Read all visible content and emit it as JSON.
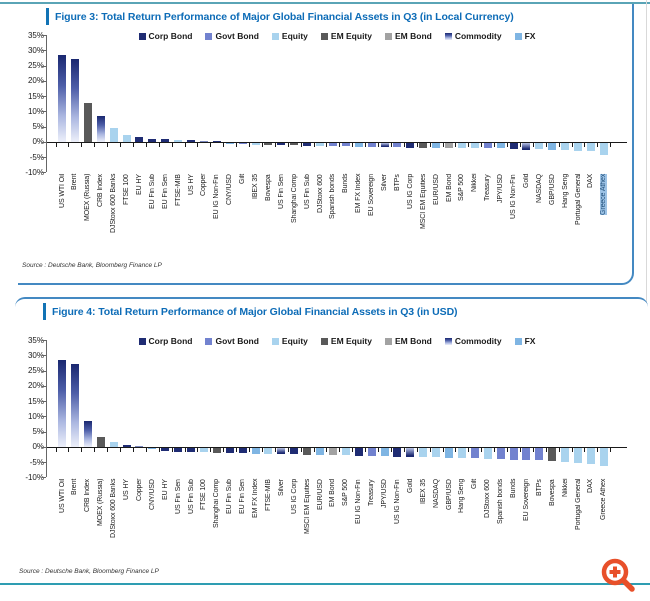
{
  "page": {
    "figure3_title": "Figure 3: Total Return Performance of Major Global Financial Assets in Q3 (in Local Currency)",
    "figure4_title": "Figure 4: Total Return Performance of Major Global Financial Assets in Q3 (in USD)"
  },
  "colors": {
    "corp_bond": "#1F2C73",
    "govt_bond": "#7282CF",
    "equity": "#A9D3EE",
    "em_equity": "#595959",
    "em_bond": "#A2A2A2",
    "commodity": "#1A2870",
    "commodity_fade": "#EDF0FA",
    "fx": "#7FB5E3",
    "title_blue": "#0D6CB7",
    "box_border": "#4489C2",
    "teal_line": "#2E9DB2",
    "highlight_bg": "#9DC3E6",
    "highlight_text": "#1F4E79",
    "zoom_icon_orange": "#E8502A"
  },
  "legend": [
    {
      "key": "corp_bond",
      "label": "Corp Bond"
    },
    {
      "key": "govt_bond",
      "label": "Govt Bond"
    },
    {
      "key": "equity",
      "label": "Equity"
    },
    {
      "key": "em_equity",
      "label": "EM Equity"
    },
    {
      "key": "em_bond",
      "label": "EM Bond"
    },
    {
      "key": "commodity",
      "label": "Commodity"
    },
    {
      "key": "fx",
      "label": "FX"
    }
  ],
  "chart_data": [
    {
      "type": "bar",
      "title": "Figure 3: Total Return Performance of Major Global Financial Assets in Q3 (in Local Currency)",
      "source": "Source : Deutsche Bank, Bloomberg Finance LP",
      "unit": "%",
      "ylim": [
        -10,
        35
      ],
      "yticks": [
        "35%",
        "30%",
        "25%",
        "20%",
        "15%",
        "10%",
        "5%",
        "0%",
        "-5%",
        "-10%"
      ],
      "grid": false,
      "legend_position": "top",
      "highlighted_label": "Greece Athex",
      "bars": [
        {
          "label": "US WTI Oil",
          "value": 28.5,
          "category": "commodity"
        },
        {
          "label": "Brent",
          "value": 27.3,
          "category": "commodity"
        },
        {
          "label": "MOEX (Russia)",
          "value": 12.8,
          "category": "em_equity"
        },
        {
          "label": "CRB Index",
          "value": 8.6,
          "category": "commodity"
        },
        {
          "label": "DJStoxx 600 Banks",
          "value": 4.5,
          "category": "equity"
        },
        {
          "label": "FTSE 100",
          "value": 2.1,
          "category": "equity"
        },
        {
          "label": "EU HY",
          "value": 1.6,
          "category": "corp_bond"
        },
        {
          "label": "EU Fin Sub",
          "value": 1.0,
          "category": "corp_bond"
        },
        {
          "label": "EU Fin Sen",
          "value": 0.9,
          "category": "corp_bond"
        },
        {
          "label": "FTSE-MIB",
          "value": 0.6,
          "category": "equity"
        },
        {
          "label": "US HY",
          "value": 0.5,
          "category": "corp_bond"
        },
        {
          "label": "Copper",
          "value": 0.3,
          "category": "commodity"
        },
        {
          "label": "EU IG Non-Fin",
          "value": 0.1,
          "category": "corp_bond"
        },
        {
          "label": "CNY/USD",
          "value": -0.2,
          "category": "fx"
        },
        {
          "label": "Gilt",
          "value": -0.3,
          "category": "govt_bond"
        },
        {
          "label": "IBEX 35",
          "value": -0.4,
          "category": "equity"
        },
        {
          "label": "Bovespa",
          "value": -0.5,
          "category": "em_equity"
        },
        {
          "label": "US Fin Sen",
          "value": -0.6,
          "category": "corp_bond"
        },
        {
          "label": "Shanghai Comp",
          "value": -0.7,
          "category": "em_equity"
        },
        {
          "label": "US Fin Sub",
          "value": -0.9,
          "category": "corp_bond"
        },
        {
          "label": "DJStoxx 600",
          "value": -0.9,
          "category": "equity"
        },
        {
          "label": "Spanish bonds",
          "value": -1.0,
          "category": "govt_bond"
        },
        {
          "label": "Bunds",
          "value": -1.0,
          "category": "govt_bond"
        },
        {
          "label": "EM FX Index",
          "value": -1.1,
          "category": "fx"
        },
        {
          "label": "EU Sovereign",
          "value": -1.1,
          "category": "govt_bond"
        },
        {
          "label": "Silver",
          "value": -1.2,
          "category": "commodity"
        },
        {
          "label": "BTPs",
          "value": -1.2,
          "category": "govt_bond"
        },
        {
          "label": "US IG Corp",
          "value": -1.4,
          "category": "corp_bond"
        },
        {
          "label": "MSCI EM Equities",
          "value": -1.5,
          "category": "em_equity"
        },
        {
          "label": "EUR/USD",
          "value": -1.4,
          "category": "fx"
        },
        {
          "label": "EM Bond",
          "value": -1.5,
          "category": "em_bond"
        },
        {
          "label": "S&P 500",
          "value": -1.5,
          "category": "equity"
        },
        {
          "label": "Nikkei",
          "value": -1.6,
          "category": "equity"
        },
        {
          "label": "Treasury",
          "value": -1.6,
          "category": "govt_bond"
        },
        {
          "label": "JPY/USD",
          "value": -1.7,
          "category": "fx"
        },
        {
          "label": "US IG Non-Fin",
          "value": -1.8,
          "category": "corp_bond"
        },
        {
          "label": "Gold",
          "value": -2.2,
          "category": "commodity"
        },
        {
          "label": "NASDAQ",
          "value": -2.0,
          "category": "equity"
        },
        {
          "label": "GBP/USD",
          "value": -2.1,
          "category": "fx"
        },
        {
          "label": "Hang Seng",
          "value": -2.2,
          "category": "equity"
        },
        {
          "label": "Portugal General",
          "value": -2.4,
          "category": "equity"
        },
        {
          "label": "DAX",
          "value": -2.6,
          "category": "equity"
        },
        {
          "label": "Greece Athex",
          "value": -4.0,
          "category": "equity",
          "highlight": true
        }
      ]
    },
    {
      "type": "bar",
      "title": "Figure 4: Total Return Performance of Major Global Financial Assets in Q3 (in USD)",
      "source": "Source : Deutsche Bank, Bloomberg Finance LP",
      "unit": "%",
      "ylim": [
        -10,
        35
      ],
      "yticks": [
        "35%",
        "30%",
        "25%",
        "20%",
        "15%",
        "10%",
        "5%",
        "0%",
        "-5%",
        "-10%"
      ],
      "grid": false,
      "legend_position": "top",
      "highlighted_label": null,
      "bars": [
        {
          "label": "US WTI Oil",
          "value": 28.5,
          "category": "commodity"
        },
        {
          "label": "Brent",
          "value": 27.3,
          "category": "commodity"
        },
        {
          "label": "CRB Index",
          "value": 8.6,
          "category": "commodity"
        },
        {
          "label": "MOEX (Russia)",
          "value": 3.3,
          "category": "em_equity"
        },
        {
          "label": "DJStoxx 600 Banks",
          "value": 1.5,
          "category": "equity"
        },
        {
          "label": "US HY",
          "value": 0.5,
          "category": "corp_bond"
        },
        {
          "label": "Copper",
          "value": 0.2,
          "category": "commodity"
        },
        {
          "label": "CNY/USD",
          "value": -0.3,
          "category": "fx"
        },
        {
          "label": "EU HY",
          "value": -1.0,
          "category": "corp_bond"
        },
        {
          "label": "US Fin Sen",
          "value": -1.1,
          "category": "corp_bond"
        },
        {
          "label": "US Fin Sub",
          "value": -1.2,
          "category": "corp_bond"
        },
        {
          "label": "FTSE 100",
          "value": -1.3,
          "category": "equity"
        },
        {
          "label": "Shanghai Comp",
          "value": -1.5,
          "category": "em_equity"
        },
        {
          "label": "EU Fin Sub",
          "value": -1.6,
          "category": "corp_bond"
        },
        {
          "label": "EU Fin Sen",
          "value": -1.7,
          "category": "corp_bond"
        },
        {
          "label": "EM FX Index",
          "value": -1.8,
          "category": "fx"
        },
        {
          "label": "FTSE-MIB",
          "value": -1.9,
          "category": "equity"
        },
        {
          "label": "Silver",
          "value": -2.0,
          "category": "commodity"
        },
        {
          "label": "US IG Corp",
          "value": -2.0,
          "category": "corp_bond"
        },
        {
          "label": "MSCI EM Equities",
          "value": -2.1,
          "category": "em_equity"
        },
        {
          "label": "EUR/USD",
          "value": -2.2,
          "category": "fx"
        },
        {
          "label": "EM Bond",
          "value": -2.2,
          "category": "em_bond"
        },
        {
          "label": "S&P 500",
          "value": -2.3,
          "category": "equity"
        },
        {
          "label": "EU IG Non-Fin",
          "value": -2.4,
          "category": "corp_bond"
        },
        {
          "label": "Treasury",
          "value": -2.5,
          "category": "govt_bond"
        },
        {
          "label": "JPY/USD",
          "value": -2.6,
          "category": "fx"
        },
        {
          "label": "US IG Non-Fin",
          "value": -2.7,
          "category": "corp_bond"
        },
        {
          "label": "Gold",
          "value": -2.8,
          "category": "commodity"
        },
        {
          "label": "IBEX 35",
          "value": -2.9,
          "category": "equity"
        },
        {
          "label": "NASDAQ",
          "value": -3.0,
          "category": "equity"
        },
        {
          "label": "GBP/USD",
          "value": -3.1,
          "category": "fx"
        },
        {
          "label": "Hang Seng",
          "value": -3.2,
          "category": "equity"
        },
        {
          "label": "Gilt",
          "value": -3.3,
          "category": "govt_bond"
        },
        {
          "label": "DJStoxx 600",
          "value": -3.4,
          "category": "equity"
        },
        {
          "label": "Spanish bonds",
          "value": -3.6,
          "category": "govt_bond"
        },
        {
          "label": "Bunds",
          "value": -3.7,
          "category": "govt_bond"
        },
        {
          "label": "EU Sovereign",
          "value": -3.8,
          "category": "govt_bond"
        },
        {
          "label": "BTPs",
          "value": -4.0,
          "category": "govt_bond"
        },
        {
          "label": "Bovespa",
          "value": -4.3,
          "category": "em_equity"
        },
        {
          "label": "Nikkei",
          "value": -4.6,
          "category": "equity"
        },
        {
          "label": "Portugal General",
          "value": -4.8,
          "category": "equity"
        },
        {
          "label": "DAX",
          "value": -5.0,
          "category": "equity"
        },
        {
          "label": "Greece Athex",
          "value": -5.8,
          "category": "equity"
        }
      ]
    }
  ]
}
